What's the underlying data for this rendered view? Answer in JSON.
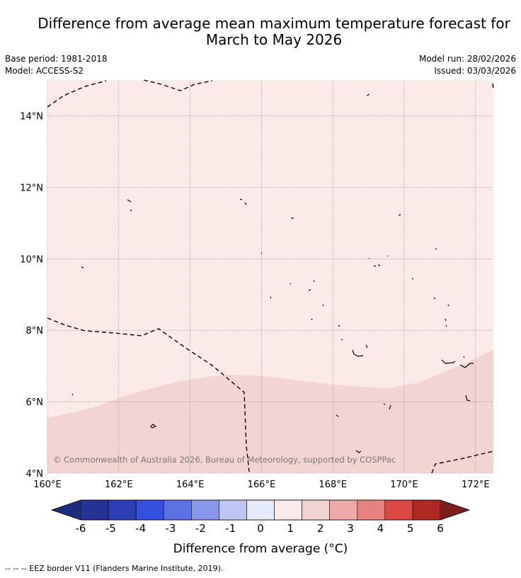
{
  "title": {
    "line1": "Difference from average mean maximum temperature forecast for",
    "line2": "March to May 2026"
  },
  "metadata": {
    "base_period": "Base period: 1981-2018",
    "model": "Model: ACCESS-S2",
    "model_run": "Model run: 28/02/2026",
    "issued": "Issued: 03/03/2026"
  },
  "map": {
    "lon_range": [
      160,
      172.5
    ],
    "lat_range": [
      4,
      15
    ],
    "lon_ticks": [
      "160°E",
      "162°E",
      "164°E",
      "166°E",
      "168°E",
      "170°E",
      "172°E"
    ],
    "lat_ticks": [
      "4°N",
      "6°N",
      "8°N",
      "10°N",
      "12°N",
      "14°N"
    ],
    "grid": true,
    "copyright": "© Commonwealth of Australia 2026, Bureau of Meteorology, supported by COSPPac",
    "fill_colors": {
      "zero_to_one": "#fbeae8",
      "one_to_two": "#f4d4d2"
    },
    "eez_border_color": "#000000"
  },
  "colorbar": {
    "tick_labels": [
      "-6",
      "-5",
      "-4",
      "-3",
      "-2",
      "-1",
      "0",
      "1",
      "2",
      "3",
      "4",
      "5",
      "6"
    ],
    "segment_colors": [
      "#253494",
      "#2d3fb6",
      "#3450e0",
      "#5b72e6",
      "#8797ea",
      "#bec7f3",
      "#e6ebfb",
      "#fbeae8",
      "#f4d4d2",
      "#edaaa6",
      "#e6837e",
      "#db4a42",
      "#af2921"
    ],
    "under_color": "#1c2c7a",
    "over_color": "#7d1e1a",
    "label": "Difference from average (°C)"
  },
  "footnote": "--  --  -- EEZ border V11 (Flanders Marine Institute, 2019)."
}
